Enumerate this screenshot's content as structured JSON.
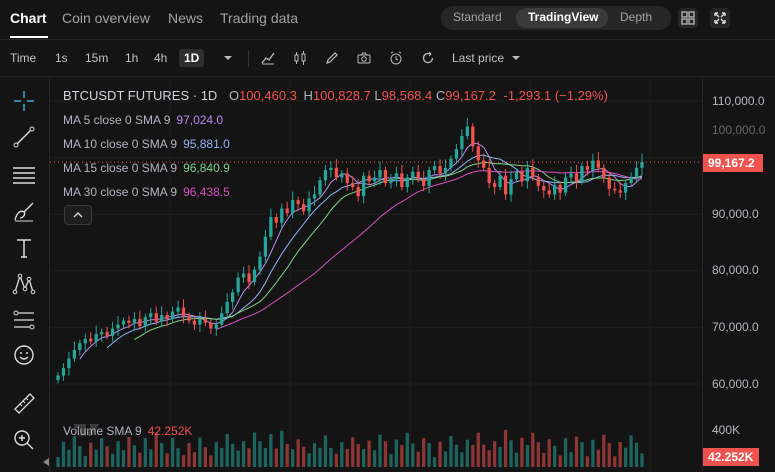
{
  "tabs": [
    {
      "label": "Chart",
      "active": true
    },
    {
      "label": "Coin overview"
    },
    {
      "label": "News"
    },
    {
      "label": "Trading data"
    }
  ],
  "modes": {
    "standard": "Standard",
    "tradingview": "TradingView",
    "depth": "Depth"
  },
  "toolbar": {
    "time_label": "Time",
    "intervals": [
      "1s",
      "15m",
      "1h",
      "4h",
      "1D"
    ],
    "active_interval": "1D",
    "price_type": "Last price"
  },
  "legend": {
    "symbol": "BTCUSDT FUTURES · 1D",
    "open_key": "O",
    "open": "100,460.3",
    "high_key": "H",
    "high": "100,828.7",
    "low_key": "L",
    "low": "98,568.4",
    "close_key": "C",
    "close": "99,167.2",
    "change": "-1,293.1 (−1.29%)"
  },
  "moving_averages": [
    {
      "label": "MA 5 close 0 SMA 9",
      "value": "97,024.0",
      "color": "#b98cf2"
    },
    {
      "label": "MA 10 close 0 SMA 9",
      "value": "95,881.0",
      "color": "#8fb6f5"
    },
    {
      "label": "MA 15 close 0 SMA 9",
      "value": "96,840.9",
      "color": "#7ed387"
    },
    {
      "label": "MA 30 close 0 SMA 9",
      "value": "96,438.5",
      "color": "#d94fc2"
    }
  ],
  "price_axis": [
    "110,000.0",
    "100,000.0",
    "90,000.0",
    "80,000.0",
    "70,000.0",
    "60,000.0"
  ],
  "current_price": "99,167.2",
  "volume": {
    "label": "Volume SMA 9",
    "value": "42.252K",
    "axis_label": "400K",
    "tag": "42.252K"
  },
  "colors": {
    "up": "#26a69a",
    "down": "#f0524d",
    "background": "#141414"
  },
  "chart_data": {
    "type": "candlestick",
    "series_close": [
      61500,
      62800,
      64500,
      66000,
      67200,
      68000,
      67500,
      68800,
      69200,
      68500,
      69800,
      70500,
      71200,
      70800,
      71500,
      70200,
      71800,
      72500,
      71000,
      72200,
      71500,
      72800,
      73500,
      72000,
      71200,
      70500,
      71500,
      70800,
      69800,
      70500,
      72500,
      74500,
      76200,
      78800,
      79500,
      78000,
      80200,
      82500,
      86000,
      89500,
      88500,
      91000,
      90200,
      92500,
      91800,
      90500,
      92800,
      93500,
      96000,
      97800,
      98200,
      96500,
      97200,
      95500,
      94800,
      93200,
      96800,
      95800,
      96500,
      97800,
      95500,
      96200,
      97200,
      94800,
      96500,
      97500,
      96200,
      95000,
      97800,
      98500,
      97200,
      98200,
      99800,
      101500,
      103800,
      105500,
      102000,
      99500,
      98200,
      95500,
      94800,
      96800,
      93500,
      96200,
      97500,
      95800,
      98200,
      96500,
      95000,
      94200,
      93500,
      95200,
      93800,
      96500,
      97200,
      95800,
      98500,
      97800,
      99500,
      98200,
      96500,
      94500,
      94200,
      93800,
      95500,
      96500,
      98200,
      99200
    ],
    "volume_max_label": "400K"
  }
}
